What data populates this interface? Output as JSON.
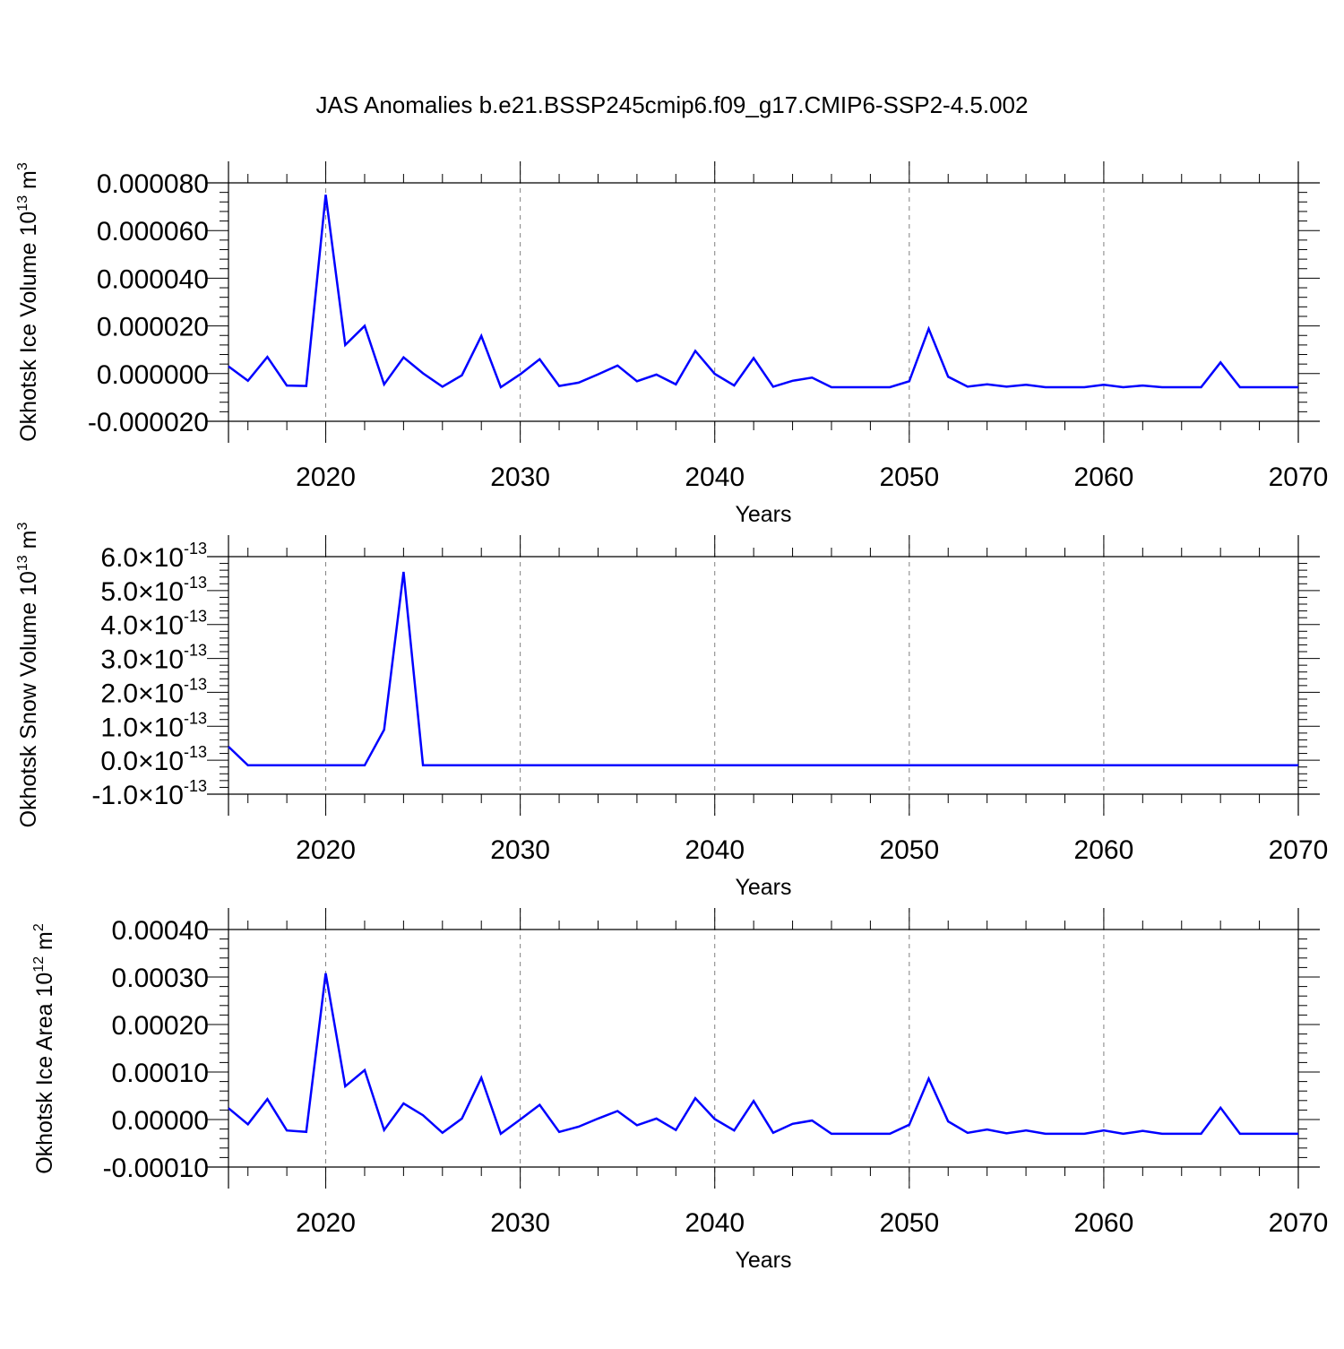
{
  "title": "JAS Anomalies b.e21.BSSP245cmip6.f09_g17.CMIP6-SSP2-4.5.002",
  "colors": {
    "series": "#0000ff",
    "axis": "#000000",
    "grid": "#808080"
  },
  "chart_data": [
    {
      "type": "line",
      "title": "",
      "xlabel": "Years",
      "ylabel": "Okhotsk Ice Volume 10",
      "ylabel_exponent": "13",
      "ylabel_unit": " m",
      "ylabel_unit_exponent": "3",
      "xlim": [
        2015,
        2070
      ],
      "ylim": [
        -2e-05,
        8e-05
      ],
      "grid": "vertical dashed at major ticks",
      "x_ticks": [
        2020,
        2030,
        2040,
        2050,
        2060,
        2070
      ],
      "x_tick_labels": [
        "2020",
        "2030",
        "2040",
        "2050",
        "2060",
        "2070"
      ],
      "y_ticks": [
        -2e-05,
        0,
        2e-05,
        4e-05,
        6e-05,
        8e-05
      ],
      "y_tick_labels": [
        "-0.000020",
        "0.000000",
        "0.000020",
        "0.000040",
        "0.000060",
        "0.000080"
      ],
      "x": [
        2015,
        2016,
        2017,
        2018,
        2019,
        2020,
        2021,
        2022,
        2023,
        2024,
        2025,
        2026,
        2027,
        2028,
        2029,
        2030,
        2031,
        2032,
        2033,
        2034,
        2035,
        2036,
        2037,
        2038,
        2039,
        2040,
        2041,
        2042,
        2043,
        2044,
        2045,
        2046,
        2047,
        2048,
        2049,
        2050,
        2051,
        2052,
        2053,
        2054,
        2055,
        2056,
        2057,
        2058,
        2059,
        2060,
        2061,
        2062,
        2063,
        2064,
        2065,
        2066,
        2067,
        2068,
        2069,
        2070
      ],
      "values": [
        3e-06,
        -3e-06,
        7e-06,
        -5e-06,
        -5.2e-06,
        7.5e-05,
        1.2e-05,
        2e-05,
        -4.5e-06,
        6.8e-06,
        1e-07,
        -5.5e-06,
        -7e-07,
        1.58e-05,
        -5.7e-06,
        -3e-07,
        6e-06,
        -5.2e-06,
        -3.8e-06,
        -3e-07,
        3.4e-06,
        -3.2e-06,
        -4e-07,
        -4.5e-06,
        9.5e-06,
        -1e-07,
        -5e-06,
        6.5e-06,
        -5.5e-06,
        -3e-06,
        -1.7e-06,
        -5.7e-06,
        -5.7e-06,
        -5.7e-06,
        -5.7e-06,
        -3.2e-06,
        1.88e-05,
        -1.3e-06,
        -5.5e-06,
        -4.5e-06,
        -5.5e-06,
        -4.7e-06,
        -5.7e-06,
        -5.7e-06,
        -5.7e-06,
        -4.7e-06,
        -5.7e-06,
        -5e-06,
        -5.7e-06,
        -5.7e-06,
        -5.7e-06,
        4.7e-06,
        -5.7e-06,
        -5.7e-06,
        -5.7e-06,
        -5.7e-06
      ]
    },
    {
      "type": "line",
      "title": "",
      "xlabel": "Years",
      "ylabel": "Okhotsk Snow Volume 10",
      "ylabel_exponent": "13",
      "ylabel_unit": " m",
      "ylabel_unit_exponent": "3",
      "xlim": [
        2015,
        2070
      ],
      "ylim": [
        -1e-13,
        6e-13
      ],
      "grid": "vertical dashed at major ticks",
      "x_ticks": [
        2020,
        2030,
        2040,
        2050,
        2060,
        2070
      ],
      "x_tick_labels": [
        "2020",
        "2030",
        "2040",
        "2050",
        "2060",
        "2070"
      ],
      "y_ticks": [
        -1e-13,
        0,
        1e-13,
        2e-13,
        3e-13,
        4e-13,
        5e-13,
        6e-13
      ],
      "y_tick_labels": [
        "-1.0×10",
        "0.0×10",
        "1.0×10",
        "2.0×10",
        "3.0×10",
        "4.0×10",
        "5.0×10",
        "6.0×10"
      ],
      "y_tick_exponent": "-13",
      "x": [
        2015,
        2016,
        2017,
        2018,
        2019,
        2020,
        2021,
        2022,
        2023,
        2024,
        2025,
        2026,
        2027,
        2028,
        2029,
        2030,
        2031,
        2032,
        2033,
        2034,
        2035,
        2036,
        2037,
        2038,
        2039,
        2040,
        2041,
        2042,
        2043,
        2044,
        2045,
        2046,
        2047,
        2048,
        2049,
        2050,
        2051,
        2052,
        2053,
        2054,
        2055,
        2056,
        2057,
        2058,
        2059,
        2060,
        2061,
        2062,
        2063,
        2064,
        2065,
        2066,
        2067,
        2068,
        2069,
        2070
      ],
      "values": [
        4e-14,
        -1.5e-14,
        -1.5e-14,
        -1.5e-14,
        -1.5e-14,
        -1.5e-14,
        -1.5e-14,
        -1.5e-14,
        9e-14,
        5.55e-13,
        -1.5e-14,
        -1.5e-14,
        -1.5e-14,
        -1.5e-14,
        -1.5e-14,
        -1.5e-14,
        -1.5e-14,
        -1.5e-14,
        -1.5e-14,
        -1.5e-14,
        -1.5e-14,
        -1.5e-14,
        -1.5e-14,
        -1.5e-14,
        -1.5e-14,
        -1.5e-14,
        -1.5e-14,
        -1.5e-14,
        -1.5e-14,
        -1.5e-14,
        -1.5e-14,
        -1.5e-14,
        -1.5e-14,
        -1.5e-14,
        -1.5e-14,
        -1.5e-14,
        -1.5e-14,
        -1.5e-14,
        -1.5e-14,
        -1.5e-14,
        -1.5e-14,
        -1.5e-14,
        -1.5e-14,
        -1.5e-14,
        -1.5e-14,
        -1.5e-14,
        -1.5e-14,
        -1.5e-14,
        -1.5e-14,
        -1.5e-14,
        -1.5e-14,
        -1.5e-14,
        -1.5e-14,
        -1.5e-14,
        -1.5e-14,
        -1.5e-14
      ]
    },
    {
      "type": "line",
      "title": "",
      "xlabel": "Years",
      "ylabel": "Okhotsk Ice Area 10",
      "ylabel_exponent": "12",
      "ylabel_unit": " m",
      "ylabel_unit_exponent": "2",
      "xlim": [
        2015,
        2070
      ],
      "ylim": [
        -0.0001,
        0.0004
      ],
      "grid": "vertical dashed at major ticks",
      "x_ticks": [
        2020,
        2030,
        2040,
        2050,
        2060,
        2070
      ],
      "x_tick_labels": [
        "2020",
        "2030",
        "2040",
        "2050",
        "2060",
        "2070"
      ],
      "y_ticks": [
        -0.0001,
        0,
        0.0001,
        0.0002,
        0.0003,
        0.0004
      ],
      "y_tick_labels": [
        "-0.00010",
        "0.00000",
        "0.00010",
        "0.00020",
        "0.00030",
        "0.00040"
      ],
      "x": [
        2015,
        2016,
        2017,
        2018,
        2019,
        2020,
        2021,
        2022,
        2023,
        2024,
        2025,
        2026,
        2027,
        2028,
        2029,
        2030,
        2031,
        2032,
        2033,
        2034,
        2035,
        2036,
        2037,
        2038,
        2039,
        2040,
        2041,
        2042,
        2043,
        2044,
        2045,
        2046,
        2047,
        2048,
        2049,
        2050,
        2051,
        2052,
        2053,
        2054,
        2055,
        2056,
        2057,
        2058,
        2059,
        2060,
        2061,
        2062,
        2063,
        2064,
        2065,
        2066,
        2067,
        2068,
        2069,
        2070
      ],
      "values": [
        2.4e-05,
        -1e-05,
        4.3e-05,
        -2.3e-05,
        -2.6e-05,
        0.000308,
        7e-05,
        0.000104,
        -2.2e-05,
        3.4e-05,
        9e-06,
        -2.8e-05,
        2e-06,
        8.8e-05,
        -3e-05,
        0.0,
        3.1e-05,
        -2.6e-05,
        -1.5e-05,
        2e-06,
        1.8e-05,
        -1.2e-05,
        2e-06,
        -2.2e-05,
        4.5e-05,
        1e-06,
        -2.3e-05,
        3.9e-05,
        -2.8e-05,
        -9e-06,
        -2e-06,
        -3e-05,
        -3e-05,
        -3e-05,
        -3e-05,
        -1.1e-05,
        8.6e-05,
        -4e-06,
        -2.8e-05,
        -2.1e-05,
        -2.9e-05,
        -2.3e-05,
        -3e-05,
        -3e-05,
        -3e-05,
        -2.3e-05,
        -3e-05,
        -2.4e-05,
        -3e-05,
        -3e-05,
        -3e-05,
        2.5e-05,
        -3e-05,
        -3e-05,
        -3e-05,
        -3e-05
      ]
    }
  ]
}
